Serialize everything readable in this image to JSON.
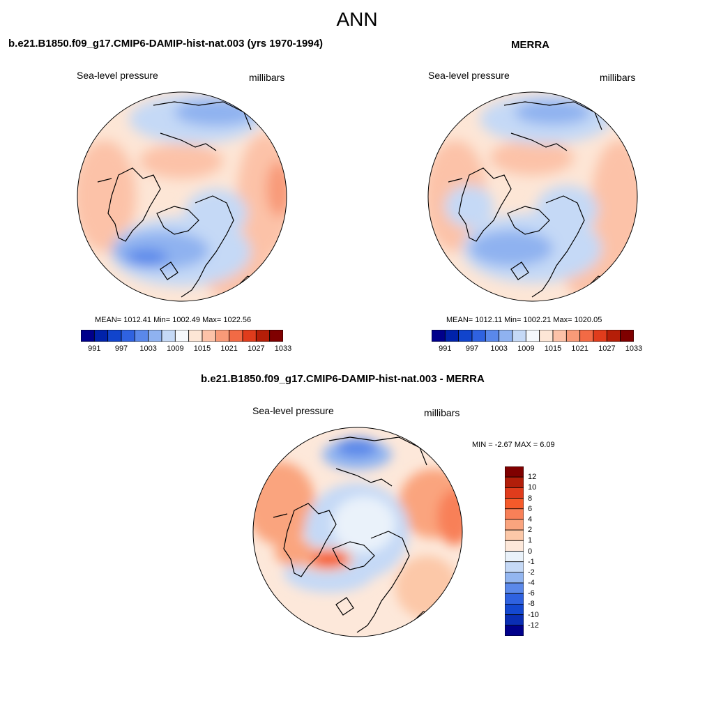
{
  "title": "ANN",
  "panels": {
    "model": {
      "title": "b.e21.B1850.f09_g17.CMIP6-DAMIP-hist-nat.003 (yrs 1970-1994)",
      "variable": "Sea-level pressure",
      "units": "millibars",
      "stats": "MEAN= 1012.41  Min= 1002.49  Max= 1022.56"
    },
    "obs": {
      "title": "MERRA",
      "variable": "Sea-level pressure",
      "units": "millibars",
      "stats": "MEAN= 1012.11  Min= 1002.21  Max= 1020.05"
    },
    "diff": {
      "title": "b.e21.B1850.f09_g17.CMIP6-DAMIP-hist-nat.003 - MERRA",
      "variable": "Sea-level pressure",
      "units": "millibars",
      "minmax": "MIN =  -2.67 MAX =   6.09"
    }
  },
  "colorbar_abs": {
    "colors": [
      "#00008b",
      "#0022aa",
      "#1144cc",
      "#2f62e0",
      "#5a88ea",
      "#8fb2f0",
      "#c5d9f6",
      "#f5f8fc",
      "#fde6d6",
      "#fcc2a8",
      "#f89a78",
      "#f26a45",
      "#e03c1c",
      "#b51e08",
      "#7f0000"
    ],
    "labels": [
      "991",
      "997",
      "1003",
      "1009",
      "1015",
      "1021",
      "1027",
      "1033"
    ]
  },
  "colorbar_diff": {
    "colors": [
      "#7f0000",
      "#b21e0a",
      "#e03c1c",
      "#f55a2a",
      "#f88058",
      "#faa47e",
      "#fcc8a8",
      "#fde8da",
      "#eaf2fa",
      "#c5d9f6",
      "#93b6f0",
      "#5b89ea",
      "#2f62e0",
      "#1448d0",
      "#0a2eb4",
      "#00008b"
    ],
    "labels": [
      "12",
      "10",
      "8",
      "6",
      "4",
      "2",
      "1",
      "0",
      "-1",
      "-2",
      "-4",
      "-6",
      "-8",
      "-10",
      "-12"
    ]
  }
}
